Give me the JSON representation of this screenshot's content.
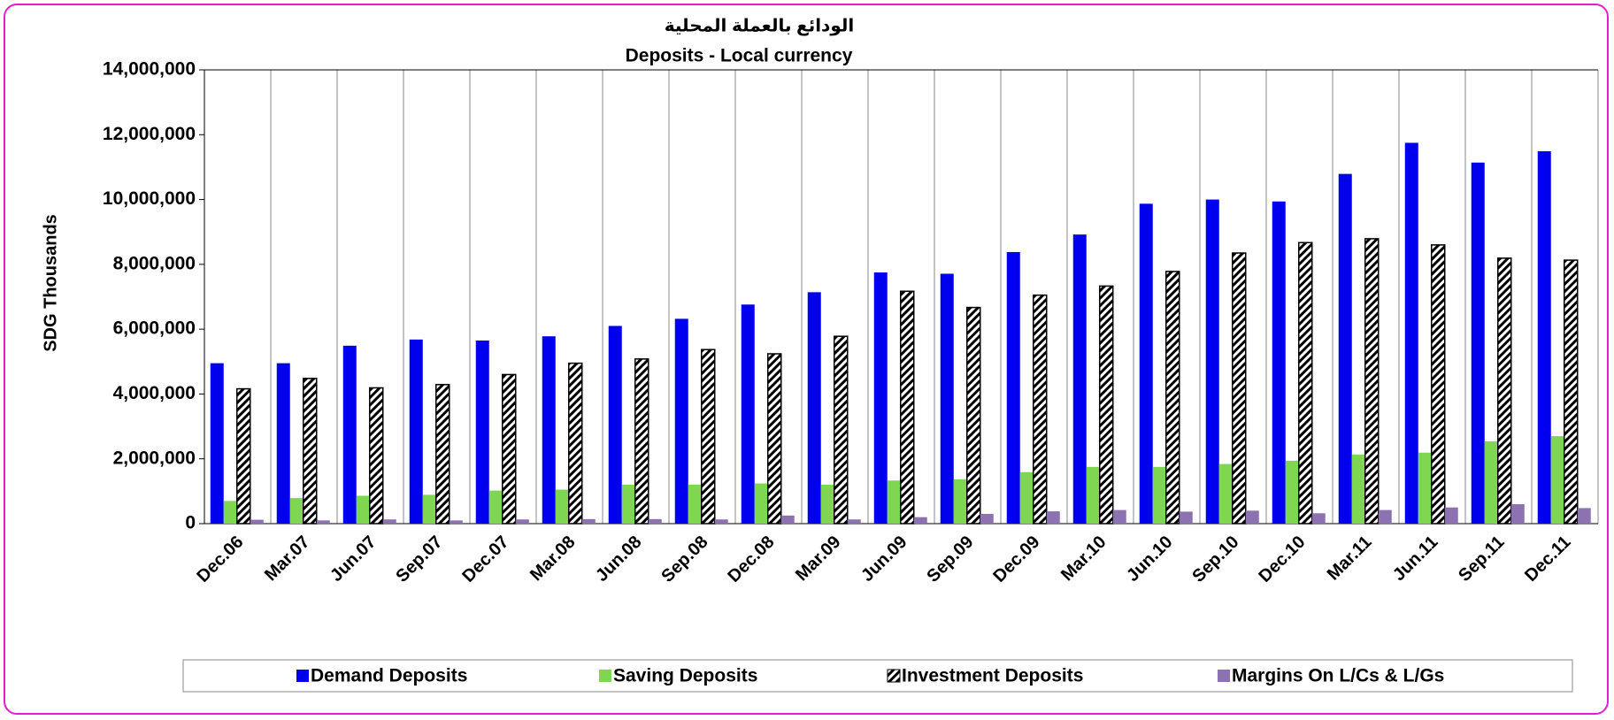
{
  "chart_data": {
    "type": "bar",
    "title": "الودائع بالعملة المحلية",
    "subtitle": "Deposits - Local currency",
    "y_label": "SDG Thousands",
    "categories": [
      "Dec.06",
      "Mar.07",
      "Jun.07",
      "Sep.07",
      "Dec.07",
      "Mar.08",
      "Jun.08",
      "Sep.08",
      "Dec.08",
      "Mar.09",
      "Jun.09",
      "Sep.09",
      "Dec.09",
      "Mar.10",
      "Jun.10",
      "Sep.10",
      "Dec.10",
      "Mar.11",
      "Jun.11",
      "Sep.11",
      "Dec.11"
    ],
    "series": [
      {
        "name": "Demand Deposits",
        "color": "#0000ee",
        "values": [
          4950000,
          4950000,
          5490000,
          5680000,
          5650000,
          5780000,
          6100000,
          6320000,
          6760000,
          7140000,
          7750000,
          7710000,
          8380000,
          8920000,
          9870000,
          10000000,
          9940000,
          10790000,
          11750000,
          11140000,
          11490000
        ]
      },
      {
        "name": "Saving Deposits",
        "color": "#7fd650",
        "values": [
          700000,
          790000,
          860000,
          890000,
          1020000,
          1050000,
          1200000,
          1200000,
          1240000,
          1200000,
          1330000,
          1370000,
          1590000,
          1750000,
          1750000,
          1840000,
          1940000,
          2130000,
          2190000,
          2540000,
          2700000
        ]
      },
      {
        "name": "Investment Deposits",
        "color": "#000000",
        "fill_pattern": "diagonal-hatch",
        "values": [
          4160000,
          4480000,
          4190000,
          4290000,
          4600000,
          4950000,
          5080000,
          5370000,
          5240000,
          5780000,
          7170000,
          6670000,
          7050000,
          7330000,
          7780000,
          8350000,
          8670000,
          8790000,
          8600000,
          8190000,
          8130000
        ]
      },
      {
        "name": "Margins On L/Cs & L/Gs",
        "color": "#8c72b0",
        "values": [
          120000,
          100000,
          130000,
          100000,
          130000,
          140000,
          140000,
          130000,
          250000,
          130000,
          200000,
          300000,
          380000,
          420000,
          370000,
          400000,
          320000,
          420000,
          500000,
          600000,
          480000
        ]
      }
    ],
    "ylim": [
      0,
      14000000
    ],
    "yticks": [
      0,
      {
        "value": 2000000,
        "label": "2,000,000"
      },
      {
        "value": 4000000,
        "label": "4,000,000"
      },
      {
        "value": 6000000,
        "label": "6,000,000"
      },
      {
        "value": 8000000,
        "label": "8,000,000"
      },
      {
        "value": 10000000,
        "label": "10,000,000"
      },
      {
        "value": 12000000,
        "label": "12,000,000"
      },
      {
        "value": 14000000,
        "label": "14,000,000"
      }
    ],
    "grid": "vertical",
    "legend": "bottom"
  }
}
